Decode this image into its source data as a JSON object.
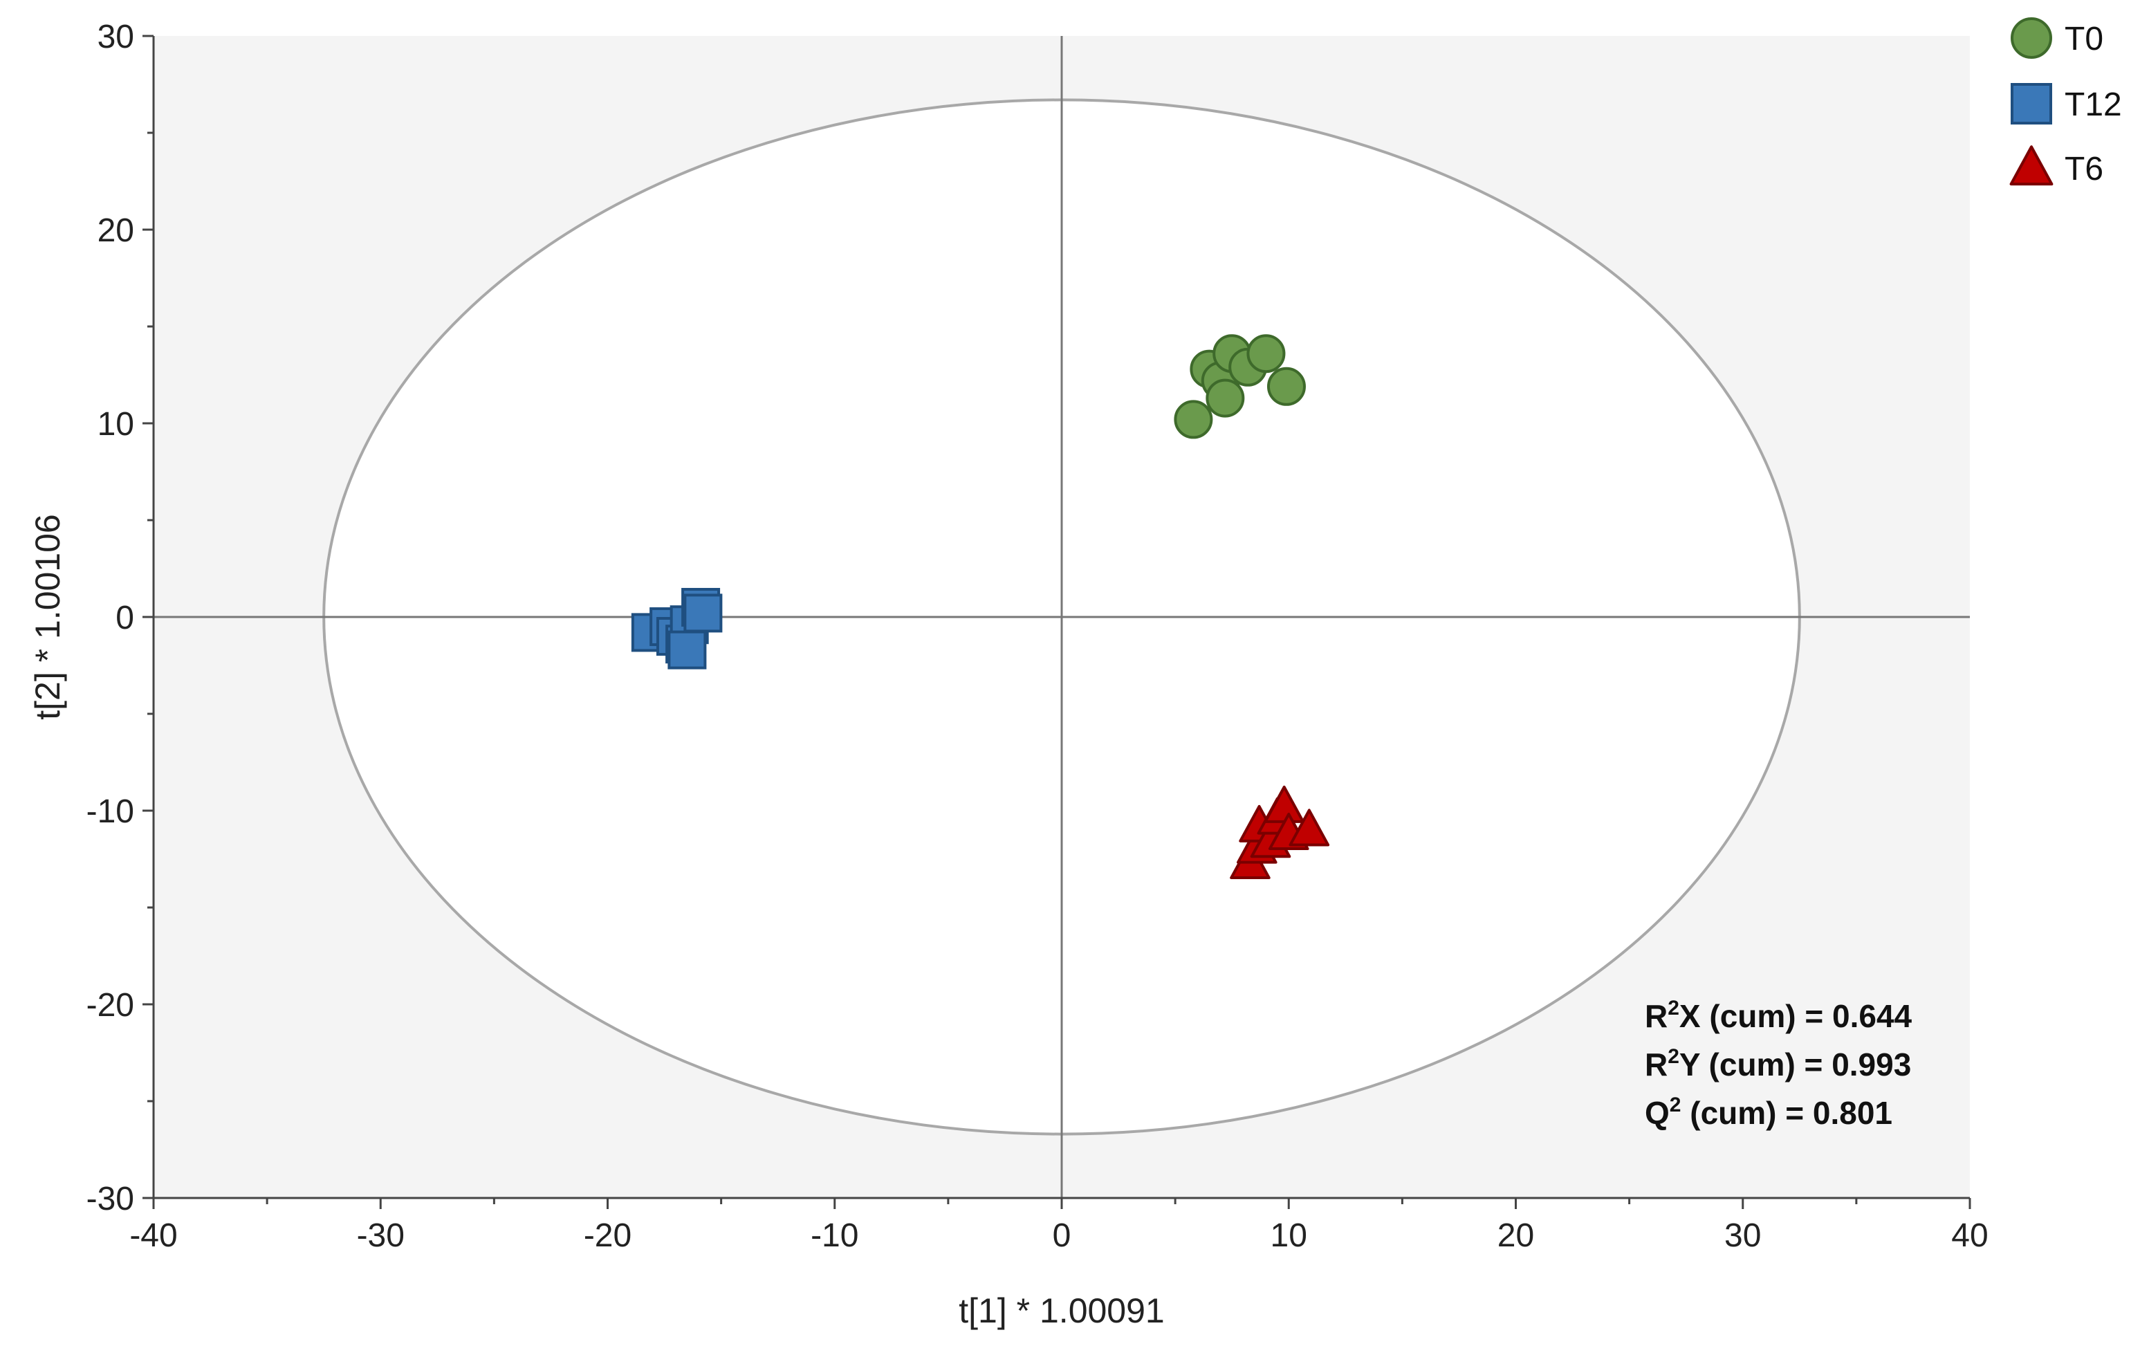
{
  "chart_data": {
    "type": "scatter",
    "xlabel": "t[1] * 1.00091",
    "ylabel": "t[2] * 1.00106",
    "xlim": [
      -40,
      40
    ],
    "ylim": [
      -30,
      30
    ],
    "x_ticks": [
      -40,
      -30,
      -20,
      -10,
      0,
      10,
      20,
      30,
      40
    ],
    "y_ticks": [
      -30,
      -20,
      -10,
      0,
      10,
      20,
      30
    ],
    "x_tick_labels": [
      "-40",
      "-30",
      "-20",
      "-10",
      "0",
      "10",
      "20",
      "30",
      "40"
    ],
    "y_tick_labels": [
      "-30",
      "-20",
      "-10",
      "0",
      "10",
      "20",
      "30"
    ],
    "grid": false,
    "ellipse": {
      "rx": 32.5,
      "ry": 26.7
    },
    "legend_position": "top-right",
    "series": [
      {
        "name": "T0",
        "marker": "circle",
        "color": "#6a9a4c",
        "stroke": "#3e6a2b",
        "points": [
          [
            5.8,
            10.2
          ],
          [
            6.5,
            12.8
          ],
          [
            7.0,
            12.2
          ],
          [
            7.2,
            11.3
          ],
          [
            7.5,
            13.6
          ],
          [
            8.2,
            12.9
          ],
          [
            9.0,
            13.6
          ],
          [
            9.9,
            11.9
          ]
        ]
      },
      {
        "name": "T12",
        "marker": "square",
        "color": "#3a78b8",
        "stroke": "#1f4f80",
        "points": [
          [
            -18.1,
            -0.8
          ],
          [
            -17.3,
            -0.5
          ],
          [
            -17.0,
            -1.0
          ],
          [
            -16.6,
            -1.4
          ],
          [
            -16.4,
            -0.4
          ],
          [
            -16.5,
            -1.7
          ],
          [
            -15.9,
            0.5
          ],
          [
            -15.8,
            0.2
          ]
        ]
      },
      {
        "name": "T6",
        "marker": "triangle",
        "color": "#c00000",
        "stroke": "#7a0000",
        "points": [
          [
            8.3,
            -12.7
          ],
          [
            8.6,
            -11.9
          ],
          [
            8.7,
            -10.8
          ],
          [
            9.2,
            -11.6
          ],
          [
            9.5,
            -10.4
          ],
          [
            9.8,
            -9.8
          ],
          [
            10.0,
            -11.2
          ],
          [
            10.9,
            -11.0
          ]
        ]
      }
    ],
    "annotations": [
      {
        "id": "r2x",
        "prefix": "R",
        "sup": "2",
        "suffix": "X (cum) = 0.644"
      },
      {
        "id": "r2y",
        "prefix": "R",
        "sup": "2",
        "suffix": "Y (cum) = 0.993"
      },
      {
        "id": "q2",
        "prefix": "Q",
        "sup": "2",
        "suffix": " (cum) = 0.801"
      }
    ]
  }
}
